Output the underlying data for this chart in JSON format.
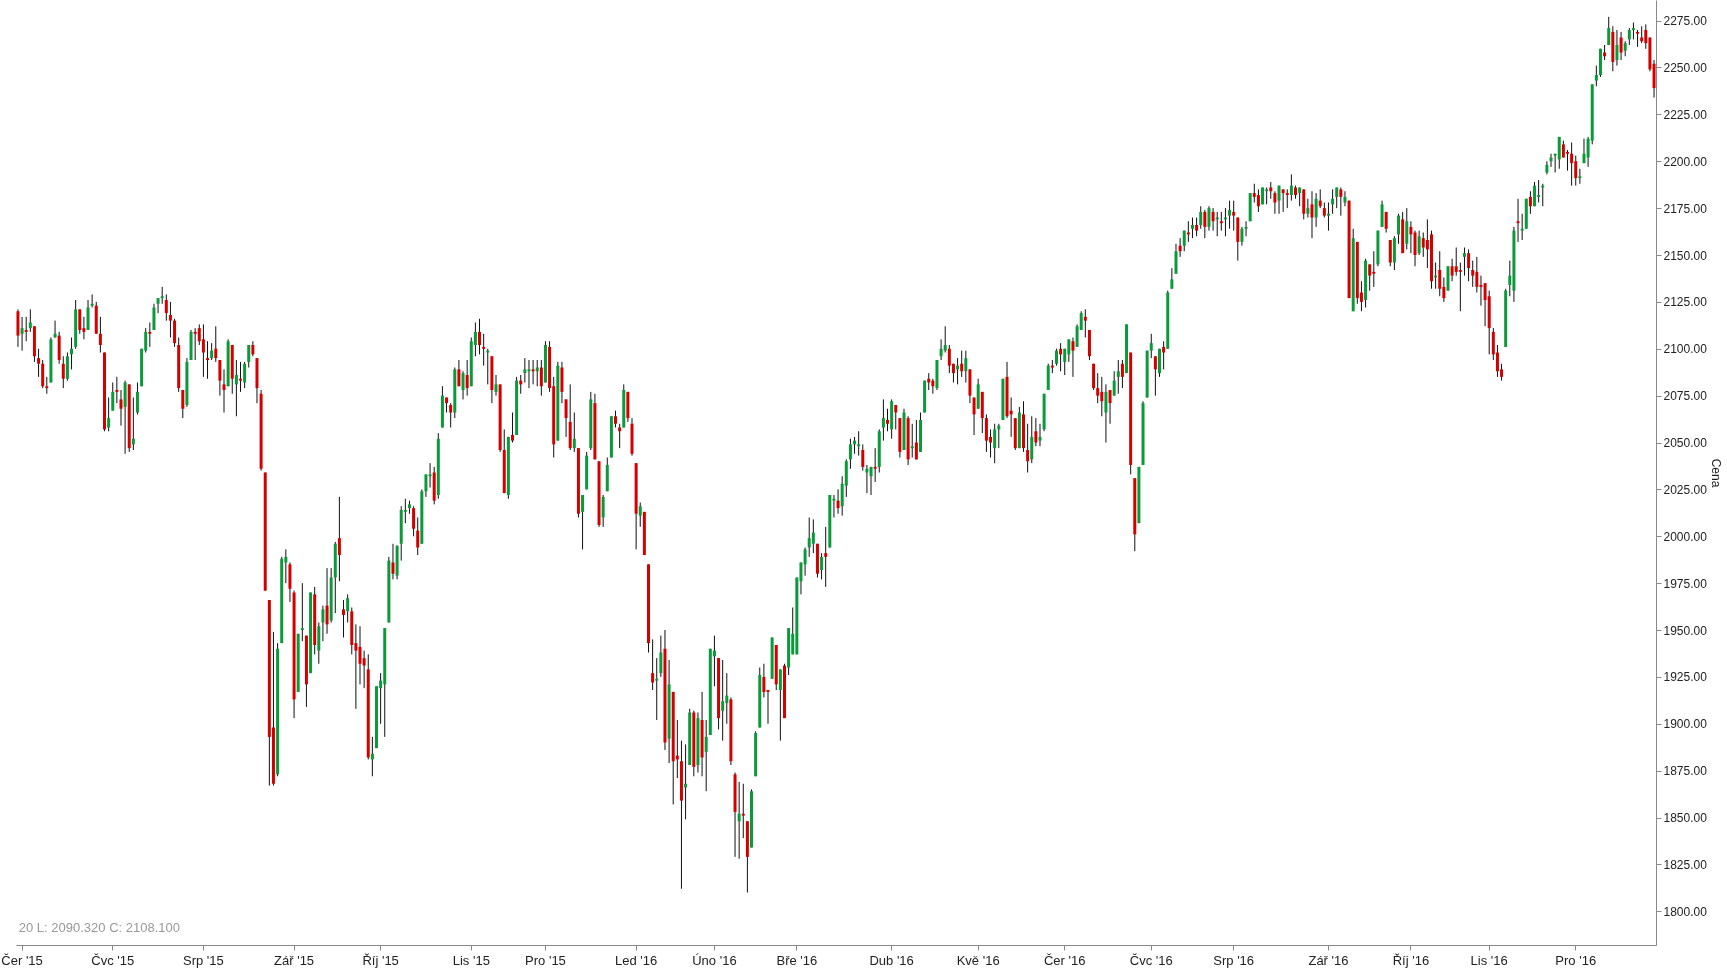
{
  "chart_data": {
    "type": "candlestick",
    "ylabel": "Cena",
    "ylim": [
      1782,
      2286
    ],
    "yticks": [
      {
        "value": 1800,
        "label": "1800.00"
      },
      {
        "value": 1825,
        "label": "1825.00"
      },
      {
        "value": 1850,
        "label": "1850.00"
      },
      {
        "value": 1875,
        "label": "1875.00"
      },
      {
        "value": 1900,
        "label": "1900.00"
      },
      {
        "value": 1925,
        "label": "1925.00"
      },
      {
        "value": 1950,
        "label": "1950.00"
      },
      {
        "value": 1975,
        "label": "1975.00"
      },
      {
        "value": 2000,
        "label": "2000.00"
      },
      {
        "value": 2025,
        "label": "2025.00"
      },
      {
        "value": 2050,
        "label": "2050.00"
      },
      {
        "value": 2075,
        "label": "2075.00"
      },
      {
        "value": 2100,
        "label": "2100.00"
      },
      {
        "value": 2125,
        "label": "2125.00"
      },
      {
        "value": 2150,
        "label": "2150.00"
      },
      {
        "value": 2175,
        "label": "2175.00"
      },
      {
        "value": 2200,
        "label": "2200.00"
      },
      {
        "value": 2225,
        "label": "2225.00"
      },
      {
        "value": 2250,
        "label": "2250.00"
      },
      {
        "value": 2275,
        "label": "2275.00"
      }
    ],
    "grid": false,
    "annotations": [
      "20  L: 2090.320  C: 2108.100"
    ],
    "categories": [
      null,
      "Čer '15",
      null,
      null,
      null,
      null,
      null,
      null,
      null,
      null,
      null,
      null,
      null,
      null,
      null,
      null,
      null,
      null,
      null,
      null,
      null,
      null,
      null,
      "Čvc '15",
      null,
      null,
      null,
      null,
      null,
      null,
      null,
      null,
      null,
      null,
      null,
      null,
      null,
      null,
      null,
      null,
      null,
      null,
      null,
      null,
      null,
      "Srp '15",
      null,
      null,
      null,
      null,
      null,
      null,
      null,
      null,
      null,
      null,
      null,
      null,
      null,
      null,
      null,
      null,
      null,
      null,
      null,
      null,
      null,
      "Zář '15",
      null,
      null,
      null,
      null,
      null,
      null,
      null,
      null,
      null,
      null,
      null,
      null,
      null,
      null,
      null,
      null,
      null,
      null,
      null,
      null,
      "Říj '15",
      null,
      null,
      null,
      null,
      null,
      null,
      null,
      null,
      null,
      null,
      null,
      null,
      null,
      null,
      null,
      null,
      null,
      null,
      null,
      null,
      null,
      "Lis '15",
      null,
      null,
      null,
      null,
      null,
      null,
      null,
      null,
      null,
      null,
      null,
      null,
      null,
      null,
      null,
      null,
      null,
      "Pro '15",
      null,
      null,
      null,
      null,
      null,
      null,
      null,
      null,
      null,
      null,
      null,
      null,
      null,
      null,
      null,
      null,
      null,
      null,
      null,
      null,
      null,
      "Led '16",
      null,
      null,
      null,
      null,
      null,
      null,
      null,
      null,
      null,
      null,
      null,
      null,
      null,
      null,
      null,
      null,
      null,
      null,
      "Úno '16",
      null,
      null,
      null,
      null,
      null,
      null,
      null,
      null,
      null,
      null,
      null,
      null,
      null,
      null,
      null,
      null,
      null,
      null,
      null,
      "Bře '16",
      null,
      null,
      null,
      null,
      null,
      null,
      null,
      null,
      null,
      null,
      null,
      null,
      null,
      null,
      null,
      null,
      null,
      null,
      null,
      null,
      null,
      null,
      "Dub '16",
      null,
      null,
      null,
      null,
      null,
      null,
      null,
      null,
      null,
      null,
      null,
      null,
      null,
      null,
      null,
      null,
      null,
      null,
      null,
      null,
      "Kvě '16",
      null,
      null,
      null,
      null,
      null,
      null,
      null,
      null,
      null,
      null,
      null,
      null,
      null,
      null,
      null,
      null,
      null,
      null,
      null,
      null,
      "Čer '16",
      null,
      null,
      null,
      null,
      null,
      null,
      null,
      null,
      null,
      null,
      null,
      null,
      null,
      null,
      null,
      null,
      null,
      null,
      null,
      null,
      "Čvc '16",
      null,
      null,
      null,
      null,
      null,
      null,
      null,
      null,
      null,
      null,
      null,
      null,
      null,
      null,
      null,
      null,
      null,
      null,
      null,
      "Srp '16",
      null,
      null,
      null,
      null,
      null,
      null,
      null,
      null,
      null,
      null,
      null,
      null,
      null,
      null,
      null,
      null,
      null,
      null,
      null,
      null,
      null,
      null,
      "Zář '16",
      null,
      null,
      null,
      null,
      null,
      null,
      null,
      null,
      null,
      null,
      null,
      null,
      null,
      null,
      null,
      null,
      null,
      null,
      null,
      "Říj '16",
      null,
      null,
      null,
      null,
      null,
      null,
      null,
      null,
      null,
      null,
      null,
      null,
      null,
      null,
      null,
      null,
      null,
      null,
      "Lis '16",
      null,
      null,
      null,
      null,
      null,
      null,
      null,
      null,
      null,
      null,
      null,
      null,
      null,
      null,
      null,
      null,
      null,
      null,
      null,
      null,
      "Pro '16",
      null,
      null,
      null,
      null,
      null,
      null,
      null,
      null,
      null,
      null,
      null,
      null,
      null,
      null,
      null,
      null,
      null,
      null,
      null
    ],
    "ohlc": [
      [
        2120,
        2121,
        2101,
        2107
      ],
      [
        2108,
        2117,
        2099,
        2111
      ],
      [
        2110,
        2117,
        2104,
        2109
      ],
      [
        2111,
        2121,
        2109,
        2114
      ],
      [
        2112,
        2112,
        2093,
        2096
      ],
      [
        2095,
        2100,
        2085,
        2092
      ],
      [
        2092,
        2094,
        2079,
        2080
      ],
      [
        2080,
        2085,
        2076,
        2079
      ],
      [
        2082,
        2106,
        2082,
        2105
      ],
      [
        2106,
        2115,
        2106,
        2108
      ],
      [
        2107,
        2109,
        2092,
        2094
      ],
      [
        2092,
        2096,
        2079,
        2084
      ],
      [
        2084,
        2098,
        2083,
        2096
      ],
      [
        2097,
        2106,
        2089,
        2100
      ],
      [
        2101,
        2126,
        2100,
        2121
      ],
      [
        2121,
        2121,
        2108,
        2110
      ],
      [
        2111,
        2117,
        2105,
        2109
      ],
      [
        2110,
        2126,
        2110,
        2122
      ],
      [
        2123,
        2129,
        2122,
        2124
      ],
      [
        2123,
        2125,
        2108,
        2108
      ],
      [
        2108,
        2117,
        2098,
        2102
      ],
      [
        2098,
        2098,
        2056,
        2057
      ],
      [
        2058,
        2074,
        2056,
        2063
      ],
      [
        2067,
        2082,
        2067,
        2077
      ],
      [
        2078,
        2085,
        2071,
        2077
      ],
      [
        2073,
        2078,
        2059,
        2068
      ],
      [
        2069,
        2083,
        2044,
        2082
      ],
      [
        2081,
        2081,
        2045,
        2047
      ],
      [
        2049,
        2074,
        2046,
        2052
      ],
      [
        2066,
        2082,
        2065,
        2077
      ],
      [
        2080,
        2100,
        2080,
        2100
      ],
      [
        2099,
        2111,
        2098,
        2109
      ],
      [
        2109,
        2114,
        2101,
        2108
      ],
      [
        2110,
        2124,
        2110,
        2122
      ],
      [
        2124,
        2127,
        2119,
        2127
      ],
      [
        2127,
        2133,
        2124,
        2128
      ],
      [
        2126,
        2129,
        2115,
        2119
      ],
      [
        2118,
        2125,
        2106,
        2115
      ],
      [
        2115,
        2116,
        2101,
        2103
      ],
      [
        2102,
        2106,
        2077,
        2079
      ],
      [
        2078,
        2078,
        2063,
        2068
      ],
      [
        2070,
        2095,
        2069,
        2093
      ],
      [
        2094,
        2110,
        2094,
        2109
      ],
      [
        2109,
        2111,
        2094,
        2108
      ],
      [
        2111,
        2113,
        2102,
        2104
      ],
      [
        2105,
        2113,
        2085,
        2098
      ],
      [
        2095,
        2104,
        2084,
        2094
      ],
      [
        2095,
        2103,
        2094,
        2099
      ],
      [
        2100,
        2112,
        2093,
        2095
      ],
      [
        2094,
        2094,
        2075,
        2083
      ],
      [
        2081,
        2089,
        2066,
        2078
      ],
      [
        2080,
        2105,
        2080,
        2104
      ],
      [
        2102,
        2102,
        2076,
        2084
      ],
      [
        2081,
        2094,
        2064,
        2086
      ],
      [
        2084,
        2093,
        2077,
        2083
      ],
      [
        2082,
        2093,
        2079,
        2092
      ],
      [
        2093,
        2102,
        2090,
        2102
      ],
      [
        2102,
        2104,
        2096,
        2097
      ],
      [
        2095,
        2095,
        2071,
        2079
      ],
      [
        2076,
        2078,
        2035,
        2036
      ],
      [
        2034,
        2034,
        1971,
        1971
      ],
      [
        1966,
        1966,
        1867,
        1893
      ],
      [
        1898,
        1949,
        1867,
        1868
      ],
      [
        1873,
        1943,
        1872,
        1940
      ],
      [
        1943,
        1989,
        1943,
        1988
      ],
      [
        1986,
        1993,
        1975,
        1989
      ],
      [
        1985,
        1986,
        1965,
        1972
      ],
      [
        1970,
        1971,
        1903,
        1913
      ],
      [
        1917,
        1948,
        1917,
        1948
      ],
      [
        1950,
        1975,
        1944,
        1951
      ],
      [
        1947,
        1947,
        1909,
        1921
      ],
      [
        1927,
        1970,
        1927,
        1970
      ],
      [
        1969,
        1973,
        1937,
        1942
      ],
      [
        1939,
        1954,
        1932,
        1952
      ],
      [
        1954,
        1963,
        1944,
        1961
      ],
      [
        1963,
        1983,
        1948,
        1953
      ],
      [
        1955,
        1983,
        1954,
        1978
      ],
      [
        1978,
        1997,
        1959,
        1996
      ],
      [
        1999,
        2021,
        1976,
        1990
      ],
      [
        1961,
        1966,
        1946,
        1958
      ],
      [
        1960,
        1969,
        1954,
        1967
      ],
      [
        1960,
        1962,
        1937,
        1942
      ],
      [
        1943,
        1953,
        1908,
        1939
      ],
      [
        1941,
        1952,
        1921,
        1932
      ],
      [
        1935,
        1939,
        1919,
        1931
      ],
      [
        1929,
        1937,
        1881,
        1882
      ],
      [
        1881,
        1893,
        1872,
        1884
      ],
      [
        1887,
        1920,
        1887,
        1920
      ],
      [
        1919,
        1927,
        1900,
        1923
      ],
      [
        1921,
        1951,
        1893,
        1951
      ],
      [
        1954,
        1989,
        1954,
        1987
      ],
      [
        1986,
        1996,
        1977,
        1980
      ],
      [
        1979,
        1995,
        1977,
        1995
      ],
      [
        1996,
        2016,
        1987,
        2014
      ],
      [
        2013,
        2020,
        2007,
        2014
      ],
      [
        2015,
        2019,
        2012,
        2017
      ],
      [
        2015,
        2016,
        2000,
        2004
      ],
      [
        2003,
        2010,
        1990,
        1994
      ],
      [
        1996,
        2025,
        1996,
        2024
      ],
      [
        2024,
        2033,
        2021,
        2033
      ],
      [
        2032,
        2039,
        2026,
        2033
      ],
      [
        2034,
        2037,
        2017,
        2019
      ],
      [
        2022,
        2055,
        2020,
        2052
      ],
      [
        2058,
        2080,
        2058,
        2075
      ],
      [
        2074,
        2074,
        2066,
        2071
      ],
      [
        2070,
        2071,
        2058,
        2066
      ],
      [
        2066,
        2090,
        2063,
        2089
      ],
      [
        2089,
        2094,
        2080,
        2080
      ],
      [
        2078,
        2088,
        2073,
        2087
      ],
      [
        2086,
        2094,
        2075,
        2079
      ],
      [
        2080,
        2106,
        2080,
        2104
      ],
      [
        2102,
        2114,
        2096,
        2109
      ],
      [
        2109,
        2116,
        2097,
        2102
      ],
      [
        2101,
        2108,
        2091,
        2100
      ],
      [
        2098,
        2100,
        2081,
        2099
      ],
      [
        2096,
        2096,
        2071,
        2078
      ],
      [
        2077,
        2086,
        2075,
        2081
      ],
      [
        2081,
        2081,
        2045,
        2046
      ],
      [
        2046,
        2057,
        2023,
        2023
      ],
      [
        2022,
        2053,
        2020,
        2053
      ],
      [
        2054,
        2066,
        2050,
        2051
      ],
      [
        2054,
        2085,
        2054,
        2083
      ],
      [
        2083,
        2086,
        2076,
        2081
      ],
      [
        2087,
        2095,
        2082,
        2089
      ],
      [
        2088,
        2094,
        2079,
        2089
      ],
      [
        2089,
        2094,
        2081,
        2088
      ],
      [
        2088,
        2094,
        2080,
        2090
      ],
      [
        2090,
        2094,
        2075,
        2080
      ],
      [
        2082,
        2104,
        2082,
        2102
      ],
      [
        2101,
        2104,
        2077,
        2079
      ],
      [
        2080,
        2085,
        2042,
        2049
      ],
      [
        2051,
        2093,
        2051,
        2091
      ],
      [
        2090,
        2093,
        2071,
        2077
      ],
      [
        2073,
        2073,
        2053,
        2063
      ],
      [
        2061,
        2081,
        2046,
        2047
      ],
      [
        2047,
        2066,
        2045,
        2052
      ],
      [
        2047,
        2047,
        2010,
        2012
      ],
      [
        2013,
        2022,
        1993,
        2022
      ],
      [
        2025,
        2045,
        2025,
        2043
      ],
      [
        2047,
        2077,
        2046,
        2073
      ],
      [
        2071,
        2076,
        2041,
        2041
      ],
      [
        2040,
        2040,
        2005,
        2006
      ],
      [
        2010,
        2022,
        2005,
        2021
      ],
      [
        2024,
        2042,
        2024,
        2038
      ],
      [
        2042,
        2064,
        2042,
        2064
      ],
      [
        2064,
        2067,
        2058,
        2060
      ],
      [
        2058,
        2060,
        2047,
        2056
      ],
      [
        2058,
        2081,
        2058,
        2078
      ],
      [
        2077,
        2077,
        2061,
        2063
      ],
      [
        2060,
        2063,
        2043,
        2044
      ],
      [
        2039,
        2039,
        1993,
        2012
      ],
      [
        2011,
        2018,
        2005,
        2016
      ],
      [
        2013,
        2013,
        1990,
        1990
      ],
      [
        1985,
        1985,
        1938,
        1943
      ],
      [
        1927,
        1945,
        1918,
        1922
      ],
      [
        1923,
        1935,
        1902,
        1924
      ],
      [
        1927,
        1947,
        1925,
        1938
      ],
      [
        1940,
        1950,
        1886,
        1890
      ],
      [
        1892,
        1934,
        1879,
        1921
      ],
      [
        1917,
        1917,
        1857,
        1880
      ],
      [
        1883,
        1902,
        1871,
        1881
      ],
      [
        1880,
        1891,
        1812,
        1859
      ],
      [
        1866,
        1889,
        1849,
        1868
      ],
      [
        1878,
        1908,
        1878,
        1906
      ],
      [
        1906,
        1907,
        1872,
        1877
      ],
      [
        1878,
        1906,
        1874,
        1903
      ],
      [
        1902,
        1917,
        1872,
        1882
      ],
      [
        1885,
        1902,
        1864,
        1893
      ],
      [
        1894,
        1940,
        1894,
        1940
      ],
      [
        1936,
        1947,
        1920,
        1939
      ],
      [
        1935,
        1935,
        1897,
        1903
      ],
      [
        1907,
        1934,
        1891,
        1912
      ],
      [
        1911,
        1927,
        1900,
        1915
      ],
      [
        1913,
        1914,
        1878,
        1880
      ],
      [
        1873,
        1874,
        1829,
        1853
      ],
      [
        1848,
        1869,
        1828,
        1852
      ],
      [
        1852,
        1868,
        1839,
        1851
      ],
      [
        1848,
        1848,
        1810,
        1829
      ],
      [
        1834,
        1865,
        1834,
        1864
      ],
      [
        1872,
        1896,
        1872,
        1895
      ],
      [
        1898,
        1930,
        1898,
        1926
      ],
      [
        1925,
        1932,
        1914,
        1917
      ],
      [
        1918,
        1918,
        1900,
        1917
      ],
      [
        1924,
        1946,
        1924,
        1946
      ],
      [
        1942,
        1942,
        1918,
        1921
      ],
      [
        1918,
        1929,
        1891,
        1929
      ],
      [
        1931,
        1932,
        1903,
        1903
      ],
      [
        1930,
        1951,
        1926,
        1951
      ],
      [
        1937,
        1962,
        1937,
        1948
      ],
      [
        1937,
        1978,
        1937,
        1978
      ],
      [
        1976,
        1986,
        1969,
        1986
      ],
      [
        1985,
        1994,
        1979,
        1993
      ],
      [
        1994,
        2010,
        1989,
        1999
      ],
      [
        1996,
        2009,
        1991,
        2002
      ],
      [
        1996,
        1996,
        1978,
        1980
      ],
      [
        1982,
        1991,
        1977,
        1989
      ],
      [
        1991,
        2005,
        1973,
        1989
      ],
      [
        1994,
        2022,
        1994,
        2022
      ],
      [
        2019,
        2022,
        2010,
        2020
      ],
      [
        2019,
        2025,
        2012,
        2015
      ],
      [
        2016,
        2032,
        2011,
        2028
      ],
      [
        2027,
        2041,
        2021,
        2040
      ],
      [
        2041,
        2052,
        2036,
        2049
      ],
      [
        2049,
        2053,
        2044,
        2051
      ],
      [
        2048,
        2056,
        2043,
        2049
      ],
      [
        2046,
        2049,
        2035,
        2037
      ],
      [
        2034,
        2038,
        2023,
        2036
      ],
      [
        2032,
        2037,
        2022,
        2037
      ],
      [
        2037,
        2047,
        2029,
        2036
      ],
      [
        2037,
        2057,
        2034,
        2056
      ],
      [
        2058,
        2073,
        2051,
        2063
      ],
      [
        2062,
        2068,
        2056,
        2060
      ],
      [
        2057,
        2073,
        2052,
        2072
      ],
      [
        2070,
        2070,
        2057,
        2066
      ],
      [
        2063,
        2063,
        2042,
        2045
      ],
      [
        2046,
        2068,
        2046,
        2066
      ],
      [
        2063,
        2064,
        2038,
        2041
      ],
      [
        2047,
        2060,
        2042,
        2048
      ],
      [
        2050,
        2062,
        2041,
        2041
      ],
      [
        2045,
        2066,
        2045,
        2062
      ],
      [
        2066,
        2083,
        2066,
        2083
      ],
      [
        2084,
        2087,
        2078,
        2082
      ],
      [
        2083,
        2084,
        2076,
        2080
      ],
      [
        2079,
        2094,
        2078,
        2094
      ],
      [
        2096,
        2105,
        2094,
        2100
      ],
      [
        2099,
        2112,
        2098,
        2102
      ],
      [
        2100,
        2102,
        2087,
        2091
      ],
      [
        2092,
        2092,
        2082,
        2087
      ],
      [
        2089,
        2095,
        2081,
        2091
      ],
      [
        2092,
        2099,
        2085,
        2088
      ],
      [
        2088,
        2099,
        2082,
        2095
      ],
      [
        2089,
        2089,
        2071,
        2075
      ],
      [
        2074,
        2074,
        2054,
        2065
      ],
      [
        2068,
        2084,
        2068,
        2081
      ],
      [
        2077,
        2077,
        2055,
        2063
      ],
      [
        2063,
        2065,
        2045,
        2051
      ],
      [
        2053,
        2057,
        2042,
        2050
      ],
      [
        2047,
        2060,
        2039,
        2057
      ],
      [
        2057,
        2060,
        2047,
        2059
      ],
      [
        2062,
        2084,
        2062,
        2084
      ],
      [
        2085,
        2093,
        2063,
        2064
      ],
      [
        2067,
        2074,
        2053,
        2065
      ],
      [
        2063,
        2063,
        2046,
        2047
      ],
      [
        2047,
        2069,
        2047,
        2066
      ],
      [
        2065,
        2072,
        2045,
        2047
      ],
      [
        2046,
        2060,
        2034,
        2040
      ],
      [
        2041,
        2064,
        2039,
        2053
      ],
      [
        2056,
        2063,
        2048,
        2050
      ],
      [
        2051,
        2060,
        2048,
        2053
      ],
      [
        2057,
        2076,
        2056,
        2076
      ],
      [
        2078,
        2092,
        2078,
        2091
      ],
      [
        2091,
        2094,
        2087,
        2090
      ],
      [
        2092,
        2100,
        2091,
        2099
      ],
      [
        2100,
        2103,
        2088,
        2097
      ],
      [
        2093,
        2100,
        2086,
        2100
      ],
      [
        2097,
        2105,
        2093,
        2105
      ],
      [
        2104,
        2106,
        2085,
        2099
      ],
      [
        2101,
        2113,
        2101,
        2112
      ],
      [
        2110,
        2120,
        2110,
        2119
      ],
      [
        2117,
        2121,
        2106,
        2115
      ],
      [
        2110,
        2110,
        2094,
        2096
      ],
      [
        2092,
        2092,
        2078,
        2079
      ],
      [
        2079,
        2087,
        2071,
        2075
      ],
      [
        2077,
        2085,
        2064,
        2072
      ],
      [
        2066,
        2081,
        2050,
        2077
      ],
      [
        2078,
        2078,
        2060,
        2071
      ],
      [
        2075,
        2088,
        2075,
        2083
      ],
      [
        2085,
        2094,
        2076,
        2088
      ],
      [
        2092,
        2094,
        2079,
        2085
      ],
      [
        2087,
        2113,
        2087,
        2113
      ],
      [
        2098,
        2098,
        2033,
        2038
      ],
      [
        2031,
        2031,
        1992,
        2001
      ],
      [
        2007,
        2037,
        2007,
        2037
      ],
      [
        2038,
        2072,
        2038,
        2071
      ],
      [
        2074,
        2099,
        2074,
        2099
      ],
      [
        2099,
        2108,
        2095,
        2103
      ],
      [
        2096,
        2096,
        2075,
        2089
      ],
      [
        2087,
        2100,
        2085,
        2100
      ],
      [
        2101,
        2104,
        2089,
        2098
      ],
      [
        2100,
        2131,
        2100,
        2130
      ],
      [
        2132,
        2143,
        2132,
        2137
      ],
      [
        2140,
        2156,
        2140,
        2152
      ],
      [
        2155,
        2159,
        2149,
        2152
      ],
      [
        2155,
        2163,
        2152,
        2163
      ],
      [
        2162,
        2168,
        2157,
        2161
      ],
      [
        2164,
        2170,
        2159,
        2166
      ],
      [
        2166,
        2170,
        2160,
        2163
      ],
      [
        2166,
        2176,
        2164,
        2173
      ],
      [
        2173,
        2174,
        2159,
        2165
      ],
      [
        2165,
        2176,
        2163,
        2175
      ],
      [
        2173,
        2175,
        2163,
        2168
      ],
      [
        2169,
        2173,
        2160,
        2170
      ],
      [
        2168,
        2173,
        2163,
        2167
      ],
      [
        2169,
        2175,
        2160,
        2170
      ],
      [
        2171,
        2179,
        2164,
        2174
      ],
      [
        2173,
        2179,
        2163,
        2171
      ],
      [
        2170,
        2170,
        2147,
        2157
      ],
      [
        2157,
        2165,
        2155,
        2164
      ],
      [
        2164,
        2168,
        2160,
        2165
      ],
      [
        2168,
        2183,
        2168,
        2183
      ],
      [
        2183,
        2188,
        2178,
        2181
      ],
      [
        2182,
        2185,
        2173,
        2176
      ],
      [
        2177,
        2186,
        2177,
        2186
      ],
      [
        2184,
        2186,
        2177,
        2185
      ],
      [
        2186,
        2189,
        2180,
        2184
      ],
      [
        2183,
        2184,
        2172,
        2178
      ],
      [
        2179,
        2187,
        2172,
        2187
      ],
      [
        2185,
        2185,
        2173,
        2183
      ],
      [
        2183,
        2185,
        2175,
        2182
      ],
      [
        2182,
        2193,
        2179,
        2187
      ],
      [
        2186,
        2187,
        2180,
        2182
      ],
      [
        2183,
        2186,
        2176,
        2186
      ],
      [
        2185,
        2185,
        2169,
        2172
      ],
      [
        2172,
        2180,
        2170,
        2175
      ],
      [
        2177,
        2184,
        2159,
        2170
      ],
      [
        2170,
        2183,
        2165,
        2180
      ],
      [
        2179,
        2185,
        2175,
        2176
      ],
      [
        2175,
        2178,
        2170,
        2171
      ],
      [
        2171,
        2178,
        2163,
        2172
      ],
      [
        2177,
        2185,
        2172,
        2180
      ],
      [
        2181,
        2186,
        2175,
        2186
      ],
      [
        2185,
        2186,
        2171,
        2181
      ],
      [
        2178,
        2184,
        2176,
        2181
      ],
      [
        2179,
        2179,
        2127,
        2127
      ],
      [
        2120,
        2164,
        2120,
        2159
      ],
      [
        2157,
        2157,
        2124,
        2127
      ],
      [
        2130,
        2136,
        2120,
        2125
      ],
      [
        2126,
        2148,
        2122,
        2147
      ],
      [
        2145,
        2145,
        2131,
        2139
      ],
      [
        2141,
        2152,
        2133,
        2140
      ],
      [
        2145,
        2163,
        2144,
        2163
      ],
      [
        2165,
        2179,
        2165,
        2177
      ],
      [
        2173,
        2173,
        2162,
        2164
      ],
      [
        2158,
        2158,
        2144,
        2146
      ],
      [
        2146,
        2160,
        2142,
        2159
      ],
      [
        2161,
        2172,
        2156,
        2171
      ],
      [
        2169,
        2173,
        2151,
        2151
      ],
      [
        2156,
        2175,
        2153,
        2168
      ],
      [
        2165,
        2168,
        2151,
        2161
      ],
      [
        2162,
        2163,
        2144,
        2150
      ],
      [
        2151,
        2163,
        2150,
        2160
      ],
      [
        2159,
        2162,
        2149,
        2154
      ],
      [
        2158,
        2169,
        2143,
        2153
      ],
      [
        2161,
        2163,
        2132,
        2136
      ],
      [
        2138,
        2146,
        2132,
        2139
      ],
      [
        2142,
        2152,
        2128,
        2132
      ],
      [
        2133,
        2138,
        2125,
        2127
      ],
      [
        2131,
        2144,
        2131,
        2144
      ],
      [
        2144,
        2148,
        2136,
        2139
      ],
      [
        2144,
        2154,
        2139,
        2141
      ],
      [
        2142,
        2146,
        2120,
        2141
      ],
      [
        2149,
        2154,
        2139,
        2151
      ],
      [
        2151,
        2153,
        2136,
        2143
      ],
      [
        2142,
        2147,
        2133,
        2139
      ],
      [
        2141,
        2149,
        2130,
        2133
      ],
      [
        2134,
        2139,
        2123,
        2133
      ],
      [
        2135,
        2135,
        2112,
        2126
      ],
      [
        2128,
        2131,
        2097,
        2111
      ],
      [
        2109,
        2111,
        2094,
        2097
      ],
      [
        2098,
        2102,
        2085,
        2088
      ],
      [
        2089,
        2092,
        2083,
        2085
      ],
      [
        2101,
        2132,
        2101,
        2131
      ],
      [
        2134,
        2147,
        2128,
        2139
      ],
      [
        2131,
        2165,
        2125,
        2163
      ],
      [
        2168,
        2180,
        2157,
        2167
      ],
      [
        2163,
        2172,
        2158,
        2164
      ],
      [
        2164,
        2180,
        2164,
        2180
      ],
      [
        2181,
        2184,
        2172,
        2176
      ],
      [
        2176,
        2189,
        2176,
        2187
      ],
      [
        2181,
        2190,
        2178,
        2182
      ],
      [
        2186,
        2188,
        2176,
        2187
      ],
      [
        2194,
        2200,
        2193,
        2198
      ],
      [
        2200,
        2204,
        2197,
        2202
      ],
      [
        2203,
        2204,
        2194,
        2204
      ],
      [
        2201,
        2213,
        2196,
        2213
      ],
      [
        2209,
        2211,
        2202,
        2202
      ],
      [
        2205,
        2206,
        2195,
        2204
      ],
      [
        2204,
        2210,
        2187,
        2199
      ],
      [
        2200,
        2203,
        2187,
        2191
      ],
      [
        2191,
        2196,
        2188,
        2192
      ],
      [
        2199,
        2212,
        2199,
        2204
      ],
      [
        2202,
        2213,
        2197,
        2212
      ],
      [
        2211,
        2241,
        2209,
        2241
      ],
      [
        2243,
        2251,
        2240,
        2246
      ],
      [
        2246,
        2260,
        2245,
        2260
      ],
      [
        2258,
        2262,
        2254,
        2256
      ],
      [
        2262,
        2277,
        2262,
        2271
      ],
      [
        2269,
        2272,
        2248,
        2253
      ],
      [
        2254,
        2270,
        2251,
        2262
      ],
      [
        2266,
        2269,
        2254,
        2258
      ],
      [
        2259,
        2264,
        2256,
        2263
      ],
      [
        2265,
        2271,
        2262,
        2270
      ],
      [
        2270,
        2274,
        2265,
        2271
      ],
      [
        2269,
        2270,
        2261,
        2268
      ],
      [
        2266,
        2272,
        2263,
        2264
      ],
      [
        2270,
        2273,
        2260,
        2263
      ],
      [
        2266,
        2266,
        2248,
        2249
      ],
      [
        2252,
        2254,
        2234,
        2239
      ]
    ]
  }
}
